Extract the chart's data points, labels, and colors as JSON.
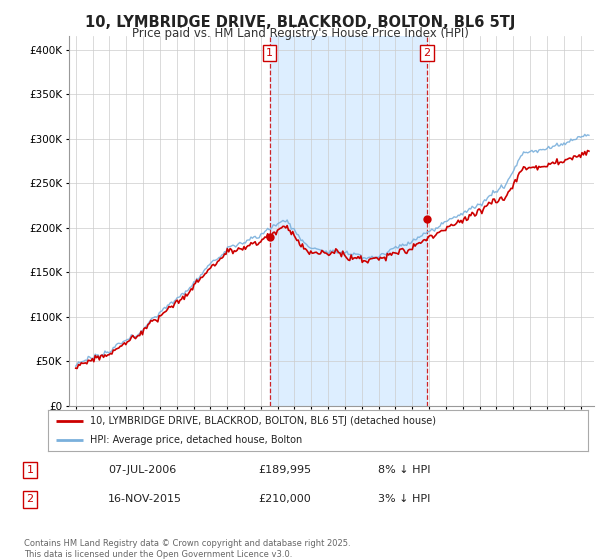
{
  "title": "10, LYMBRIDGE DRIVE, BLACKROD, BOLTON, BL6 5TJ",
  "subtitle": "Price paid vs. HM Land Registry's House Price Index (HPI)",
  "ytick_values": [
    0,
    50000,
    100000,
    150000,
    200000,
    250000,
    300000,
    350000,
    400000
  ],
  "ylim": [
    0,
    415000
  ],
  "xlim_start": 1994.6,
  "xlim_end": 2025.8,
  "hpi_color": "#7ab0dc",
  "hpi_fill_color": "#ddeeff",
  "price_color": "#cc0000",
  "marker1_x": 2006.52,
  "marker1_y": 189995,
  "marker2_x": 2015.88,
  "marker2_y": 210000,
  "legend_label1": "10, LYMBRIDGE DRIVE, BLACKROD, BOLTON, BL6 5TJ (detached house)",
  "legend_label2": "HPI: Average price, detached house, Bolton",
  "table_row1": [
    "1",
    "07-JUL-2006",
    "£189,995",
    "8% ↓ HPI"
  ],
  "table_row2": [
    "2",
    "16-NOV-2015",
    "£210,000",
    "3% ↓ HPI"
  ],
  "footer": "Contains HM Land Registry data © Crown copyright and database right 2025.\nThis data is licensed under the Open Government Licence v3.0.",
  "background_color": "#ffffff",
  "grid_color": "#cccccc"
}
